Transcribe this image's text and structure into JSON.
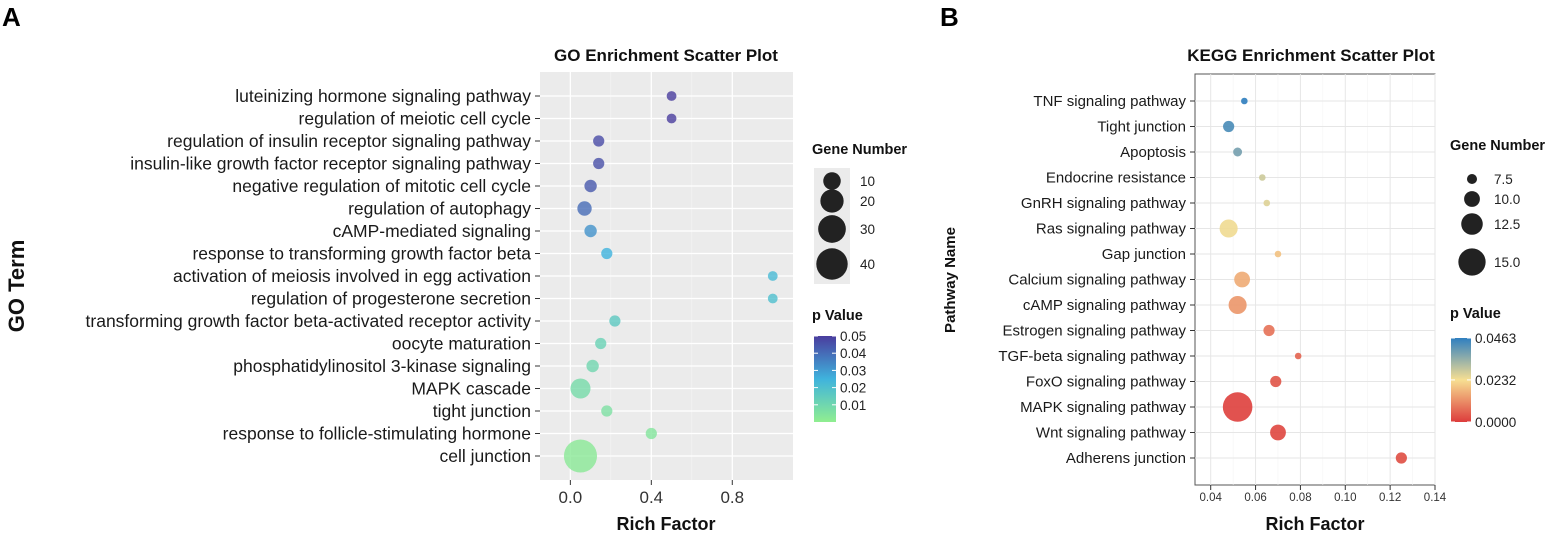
{
  "panels": {
    "a_letter": "A",
    "b_letter": "B"
  },
  "chart_data": [
    {
      "type": "scatter",
      "title": "GO Enrichment Scatter Plot",
      "xlabel": "Rich Factor",
      "ylabel": "GO Term",
      "xlim": [
        -0.15,
        1.1
      ],
      "xticks": [
        0.0,
        0.4,
        0.8
      ],
      "xtick_labels": [
        "0.0",
        "0.4",
        "0.8"
      ],
      "grid": true,
      "background": "#ebebeb",
      "categories": [
        "luteinizing hormone signaling pathway",
        "regulation of meiotic cell cycle",
        "regulation of insulin receptor signaling pathway",
        "insulin-like growth factor receptor signaling pathway",
        "negative regulation of mitotic cell cycle",
        "regulation of autophagy",
        "cAMP-mediated signaling",
        "response to transforming growth factor beta",
        "activation of meiosis involved in egg activation",
        "regulation of progesterone secretion",
        "transforming growth factor beta-activated receptor activity",
        "oocyte maturation",
        "phosphatidylinositol 3-kinase signaling",
        "MAPK cascade",
        "tight junction",
        "response to follicle-stimulating hormone",
        "cell junction"
      ],
      "points": [
        {
          "term": "luteinizing hormone signaling pathway",
          "x": 0.5,
          "gene_number": 2,
          "p_value": 0.052
        },
        {
          "term": "regulation of meiotic cell cycle",
          "x": 0.5,
          "gene_number": 2,
          "p_value": 0.05
        },
        {
          "term": "regulation of insulin receptor signaling pathway",
          "x": 0.14,
          "gene_number": 3,
          "p_value": 0.047
        },
        {
          "term": "insulin-like growth factor receptor signaling pathway",
          "x": 0.14,
          "gene_number": 3,
          "p_value": 0.046
        },
        {
          "term": "negative regulation of mitotic cell cycle",
          "x": 0.1,
          "gene_number": 4,
          "p_value": 0.044
        },
        {
          "term": "regulation of autophagy",
          "x": 0.07,
          "gene_number": 6,
          "p_value": 0.04
        },
        {
          "term": "cAMP-mediated signaling",
          "x": 0.1,
          "gene_number": 4,
          "p_value": 0.032
        },
        {
          "term": "response to transforming growth factor beta",
          "x": 0.18,
          "gene_number": 3,
          "p_value": 0.025
        },
        {
          "term": "activation of meiosis involved in egg activation",
          "x": 1.0,
          "gene_number": 2,
          "p_value": 0.022
        },
        {
          "term": "regulation of progesterone secretion",
          "x": 1.0,
          "gene_number": 2,
          "p_value": 0.02
        },
        {
          "term": "transforming growth factor beta-activated receptor activity",
          "x": 0.22,
          "gene_number": 3,
          "p_value": 0.016
        },
        {
          "term": "oocyte maturation",
          "x": 0.15,
          "gene_number": 3,
          "p_value": 0.012
        },
        {
          "term": "phosphatidylinositol 3-kinase signaling",
          "x": 0.11,
          "gene_number": 4,
          "p_value": 0.01
        },
        {
          "term": "MAPK cascade",
          "x": 0.05,
          "gene_number": 14,
          "p_value": 0.008
        },
        {
          "term": "tight junction",
          "x": 0.18,
          "gene_number": 3,
          "p_value": 0.006
        },
        {
          "term": "response to follicle-stimulating hormone",
          "x": 0.4,
          "gene_number": 3,
          "p_value": 0.004
        },
        {
          "term": "cell junction",
          "x": 0.05,
          "gene_number": 45,
          "p_value": 0.002
        }
      ],
      "legend_size": {
        "title": "Gene Number",
        "values": [
          10,
          20,
          30,
          40
        ],
        "labels": [
          "10",
          "20",
          "30",
          "40"
        ]
      },
      "legend_color": {
        "title": "p Value",
        "range": [
          0.0,
          0.05
        ],
        "ticks": [
          0.05,
          0.04,
          0.03,
          0.02,
          0.01
        ],
        "tick_labels": [
          "0.05",
          "0.04",
          "0.03",
          "0.02",
          "0.01"
        ],
        "colors": [
          "#90ee90",
          "#3fb3dd",
          "#4a3d9e"
        ]
      }
    },
    {
      "type": "scatter",
      "title": "KEGG Enrichment Scatter Plot",
      "xlabel": "Rich Factor",
      "ylabel": "Pathway Name",
      "xlim": [
        0.033,
        0.14
      ],
      "xticks": [
        0.04,
        0.06,
        0.08,
        0.1,
        0.12,
        0.14
      ],
      "xtick_labels": [
        "0.04",
        "0.06",
        "0.08",
        "0.10",
        "0.12",
        "0.14"
      ],
      "grid": true,
      "background": "#ffffff",
      "categories": [
        "TNF signaling pathway",
        "Tight junction",
        "Apoptosis",
        "Endocrine resistance",
        "GnRH signaling pathway",
        "Ras signaling pathway",
        "Gap junction",
        "Calcium signaling pathway",
        "cAMP signaling pathway",
        "Estrogen signaling pathway",
        "TGF-beta signaling pathway",
        "FoxO signaling pathway",
        "MAPK signaling pathway",
        "Wnt signaling pathway",
        "Adherens junction"
      ],
      "points": [
        {
          "term": "TNF signaling pathway",
          "x": 0.055,
          "gene_number": 6,
          "p_value": 0.046
        },
        {
          "term": "Tight junction",
          "x": 0.048,
          "gene_number": 8,
          "p_value": 0.043
        },
        {
          "term": "Apoptosis",
          "x": 0.052,
          "gene_number": 7,
          "p_value": 0.038
        },
        {
          "term": "Endocrine resistance",
          "x": 0.063,
          "gene_number": 6,
          "p_value": 0.028
        },
        {
          "term": "GnRH signaling pathway",
          "x": 0.065,
          "gene_number": 6,
          "p_value": 0.026
        },
        {
          "term": "Ras signaling pathway",
          "x": 0.048,
          "gene_number": 11,
          "p_value": 0.024
        },
        {
          "term": "Gap junction",
          "x": 0.07,
          "gene_number": 6,
          "p_value": 0.019
        },
        {
          "term": "Calcium signaling pathway",
          "x": 0.054,
          "gene_number": 10,
          "p_value": 0.016
        },
        {
          "term": "cAMP signaling pathway",
          "x": 0.052,
          "gene_number": 11,
          "p_value": 0.013
        },
        {
          "term": "Estrogen signaling pathway",
          "x": 0.066,
          "gene_number": 8,
          "p_value": 0.008
        },
        {
          "term": "TGF-beta signaling pathway",
          "x": 0.079,
          "gene_number": 6,
          "p_value": 0.006
        },
        {
          "term": "FoxO signaling pathway",
          "x": 0.069,
          "gene_number": 8,
          "p_value": 0.004
        },
        {
          "term": "MAPK signaling pathway",
          "x": 0.052,
          "gene_number": 16,
          "p_value": 0.001
        },
        {
          "term": "Wnt signaling pathway",
          "x": 0.07,
          "gene_number": 10,
          "p_value": 0.002
        },
        {
          "term": "Adherens junction",
          "x": 0.125,
          "gene_number": 8,
          "p_value": 0.003
        }
      ],
      "legend_size": {
        "title": "Gene Number",
        "values": [
          7.5,
          10.0,
          12.5,
          15.0
        ],
        "labels": [
          "7.5",
          "10.0",
          "12.5",
          "15.0"
        ]
      },
      "legend_color": {
        "title": "p Value",
        "range": [
          0.0,
          0.0463
        ],
        "ticks": [
          0.0463,
          0.0232,
          0.0
        ],
        "tick_labels": [
          "0.0463",
          "0.0232",
          "0.0000"
        ],
        "colors": [
          "#dd3c3c",
          "#f7df92",
          "#2f7fc0"
        ]
      }
    }
  ]
}
